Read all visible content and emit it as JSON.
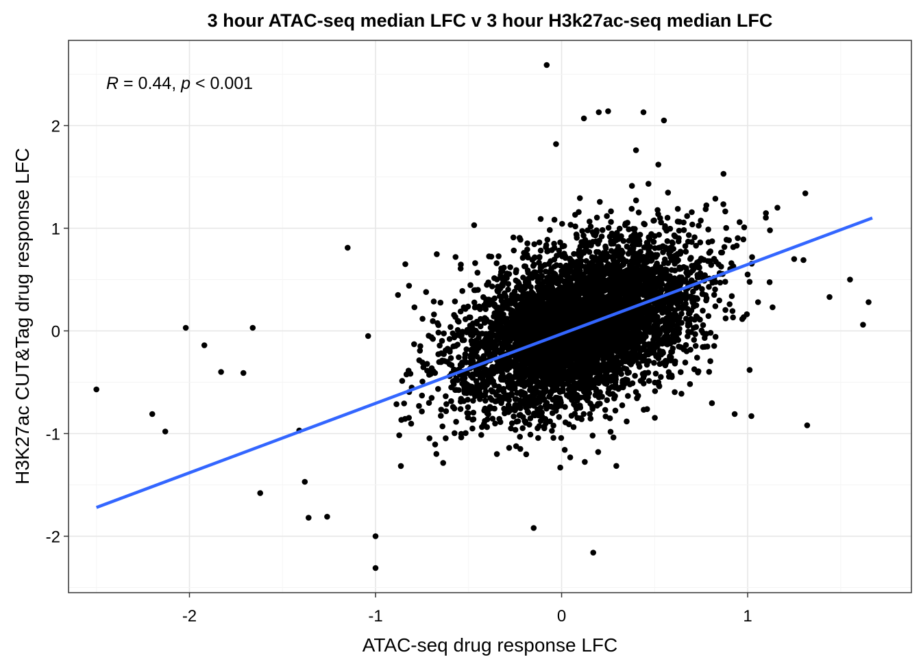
{
  "chart_data": {
    "type": "scatter",
    "title": "3 hour ATAC-seq median LFC v 3 hour H3k27ac-seq median LFC",
    "xlabel": "ATAC-seq drug response LFC",
    "ylabel": "H3K27ac CUT&Tag drug response LFC",
    "xlim": [
      -2.65,
      1.88
    ],
    "ylim": [
      -2.55,
      2.83
    ],
    "x_ticks": [
      -2,
      -1,
      0,
      1
    ],
    "x_tick_labels": [
      "-2",
      "-1",
      "0",
      "1"
    ],
    "y_ticks": [
      -2,
      -1,
      0,
      1,
      2
    ],
    "y_tick_labels": [
      "-2",
      "-1",
      "0",
      "1",
      "2"
    ],
    "grid": true,
    "point_color": "#000000",
    "annotation": {
      "r_symbol": "R",
      "r_value": " = 0.44, ",
      "p_symbol": "p",
      "p_value": " < 0.001"
    },
    "trend_line": {
      "color": "#3366FF",
      "x": [
        -2.5,
        1.67
      ],
      "y": [
        -1.72,
        1.1
      ]
    },
    "outlier_points": [
      [
        -2.5,
        -0.57
      ],
      [
        -2.2,
        -0.81
      ],
      [
        -2.13,
        -0.98
      ],
      [
        -2.02,
        0.03
      ],
      [
        -1.92,
        -0.14
      ],
      [
        -1.83,
        -0.4
      ],
      [
        -1.71,
        -0.41
      ],
      [
        -1.66,
        0.03
      ],
      [
        -1.62,
        -1.58
      ],
      [
        -1.41,
        -0.97
      ],
      [
        -1.38,
        -1.47
      ],
      [
        -1.36,
        -1.82
      ],
      [
        -1.26,
        -1.81
      ],
      [
        -1.15,
        0.81
      ],
      [
        -1.04,
        -0.05
      ],
      [
        -1.0,
        -2.0
      ],
      [
        -1.0,
        -2.31
      ],
      [
        -0.84,
        0.65
      ],
      [
        -0.82,
        0.44
      ],
      [
        -0.08,
        2.59
      ],
      [
        -0.15,
        -1.92
      ],
      [
        0.17,
        -2.16
      ],
      [
        -0.03,
        1.82
      ],
      [
        0.12,
        2.07
      ],
      [
        0.2,
        2.13
      ],
      [
        0.25,
        2.14
      ],
      [
        0.44,
        2.13
      ],
      [
        0.55,
        2.05
      ],
      [
        0.4,
        1.76
      ],
      [
        0.52,
        1.62
      ],
      [
        0.87,
        1.53
      ],
      [
        1.31,
        1.34
      ],
      [
        1.12,
        0.98
      ],
      [
        1.16,
        1.2
      ],
      [
        1.55,
        0.5
      ],
      [
        1.65,
        0.28
      ],
      [
        1.62,
        0.06
      ],
      [
        1.44,
        0.33
      ],
      [
        1.25,
        0.7
      ],
      [
        1.3,
        0.69
      ],
      [
        1.32,
        -0.92
      ],
      [
        1.02,
        -0.83
      ],
      [
        0.93,
        -0.81
      ],
      [
        -0.47,
        1.03
      ],
      [
        -0.57,
        0.72
      ]
    ],
    "cloud": {
      "center_x": 0.1,
      "center_y": 0.05,
      "sd_x": 0.32,
      "sd_y": 0.42,
      "correlation": 0.44,
      "count": 5200
    }
  }
}
